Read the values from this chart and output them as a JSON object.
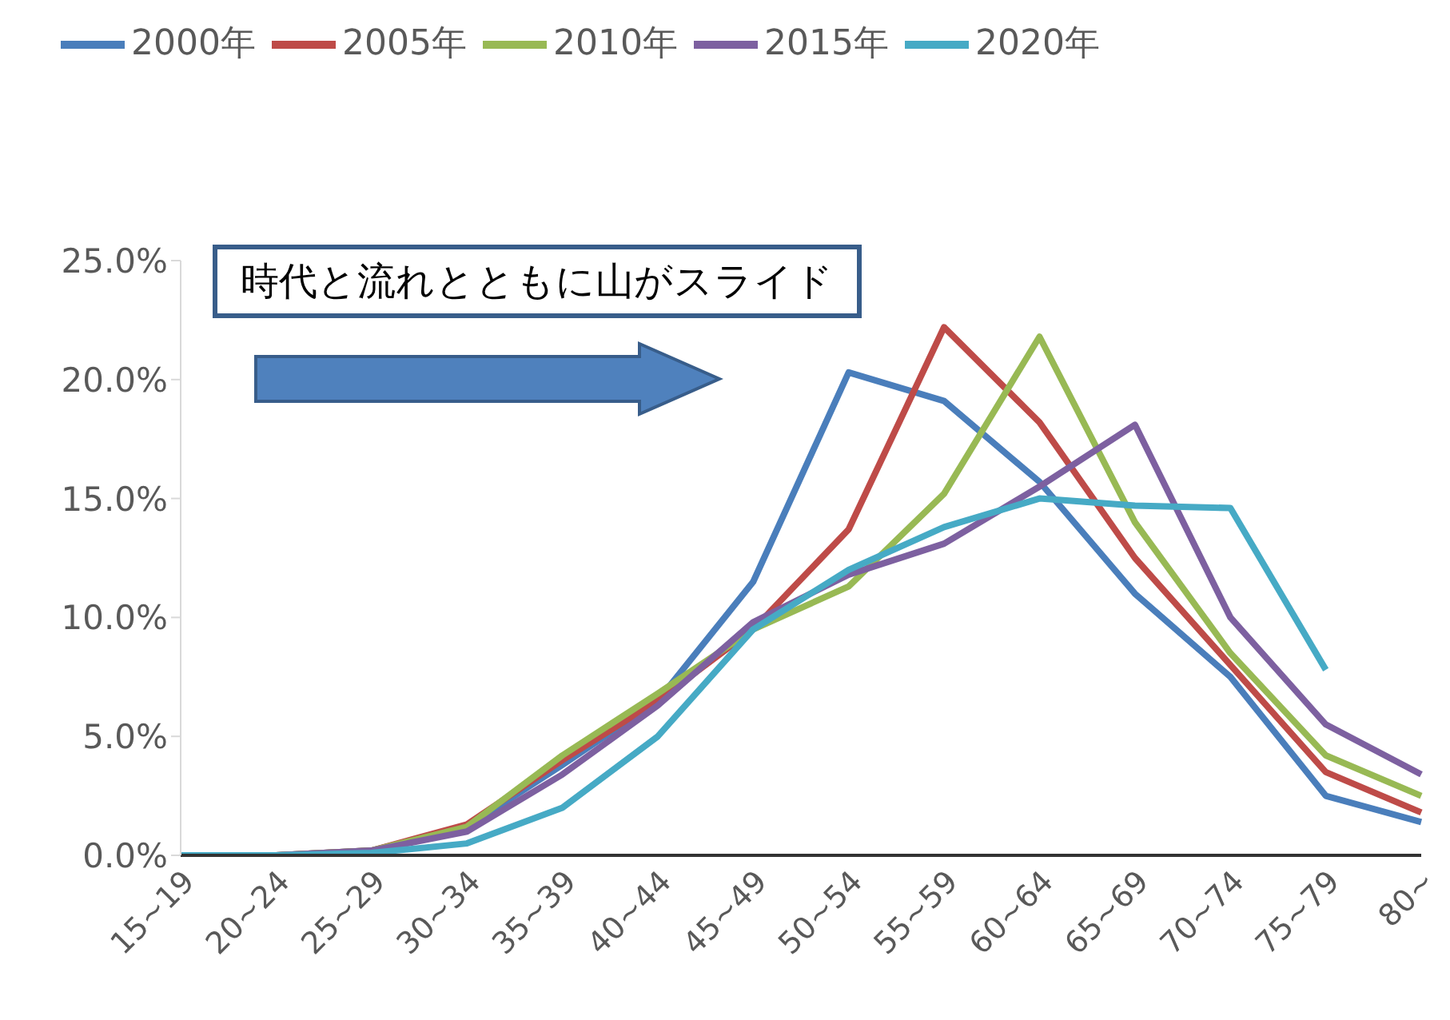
{
  "chart_data": {
    "type": "line",
    "categories": [
      "15~19",
      "20~24",
      "25~29",
      "30~34",
      "35~39",
      "40~44",
      "45~49",
      "50~54",
      "55~59",
      "60~64",
      "65~69",
      "70~74",
      "75~79",
      "80~"
    ],
    "series": [
      {
        "name": "2000年",
        "color": "#4a7ebb",
        "values": [
          0,
          0,
          0.2,
          1.2,
          3.8,
          6.5,
          11.5,
          20.3,
          19.1,
          15.7,
          11,
          7.5,
          2.5,
          1.4
        ]
      },
      {
        "name": "2005年",
        "color": "#be4b48",
        "values": [
          0,
          0,
          0.2,
          1.3,
          4,
          6.5,
          9.5,
          13.7,
          22.2,
          18.2,
          12.5,
          8,
          3.5,
          1.8
        ]
      },
      {
        "name": "2010年",
        "color": "#98b954",
        "values": [
          0,
          0,
          0.2,
          1.2,
          4.2,
          6.8,
          9.5,
          11.3,
          15.2,
          21.8,
          14,
          8.5,
          4.2,
          2.5
        ]
      },
      {
        "name": "2015年",
        "color": "#7d60a0",
        "values": [
          0,
          0,
          0.2,
          1,
          3.4,
          6.3,
          9.8,
          11.8,
          13.1,
          15.5,
          18.1,
          10,
          5.5,
          3.4
        ]
      },
      {
        "name": "2020年",
        "color": "#46aac5",
        "values": [
          0,
          0,
          0.1,
          0.5,
          2,
          5,
          9.5,
          12,
          13.8,
          15,
          14.7,
          14.6,
          7.8,
          null
        ]
      }
    ],
    "ylim": [
      0,
      25
    ],
    "yticks": [
      {
        "value": 0,
        "label": "0.0%"
      },
      {
        "value": 5,
        "label": "5.0%"
      },
      {
        "value": 10,
        "label": "10.0%"
      },
      {
        "value": 15,
        "label": "15.0%"
      },
      {
        "value": 20,
        "label": "20.0%"
      },
      {
        "value": 25,
        "label": "25.0%"
      }
    ],
    "grid": false,
    "legend": "top left",
    "marker": "none",
    "line_style": "solid",
    "annotations": [
      "時代と流れとともに山がスライド"
    ]
  }
}
